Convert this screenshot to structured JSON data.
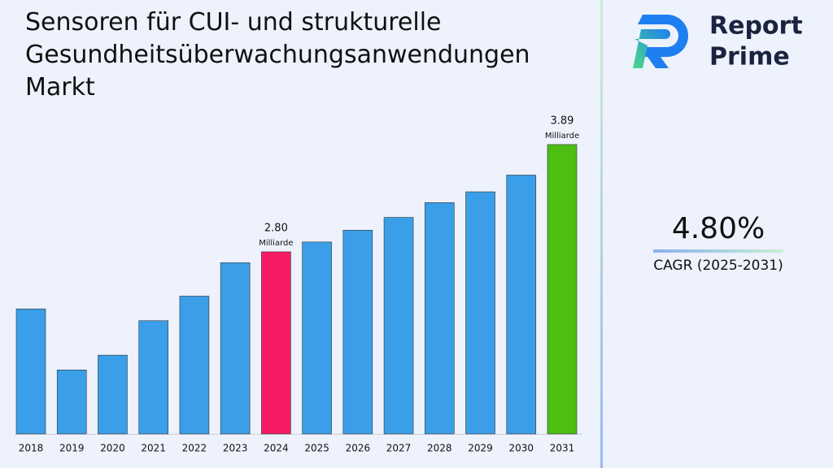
{
  "chart_data": {
    "type": "bar",
    "title": "Sensoren für CUI- und strukturelle Gesundheitsüberwachungsanwendungen Markt",
    "categories": [
      "2018",
      "2019",
      "2020",
      "2021",
      "2022",
      "2023",
      "2024",
      "2025",
      "2026",
      "2027",
      "2028",
      "2029",
      "2030",
      "2031"
    ],
    "values": [
      2.22,
      1.6,
      1.75,
      2.1,
      2.35,
      2.69,
      2.8,
      2.9,
      3.02,
      3.15,
      3.3,
      3.41,
      3.58,
      3.89
    ],
    "value_labels": [
      null,
      null,
      null,
      null,
      null,
      null,
      "2.80",
      null,
      null,
      null,
      null,
      null,
      null,
      "3.89"
    ],
    "value_label_unit": "Milliarde",
    "colors": [
      "#3a9fe8",
      "#3a9fe8",
      "#3a9fe8",
      "#3a9fe8",
      "#3a9fe8",
      "#3a9fe8",
      "#f81b63",
      "#3a9fe8",
      "#3a9fe8",
      "#3a9fe8",
      "#3a9fe8",
      "#3a9fe8",
      "#3a9fe8",
      "#4cbf12"
    ],
    "ylim": [
      0.95,
      4.0
    ]
  },
  "brand": {
    "line1": "Report",
    "line2": "Prime"
  },
  "cagr": {
    "value": "4.80%",
    "label": "CAGR (2025-2031)"
  }
}
